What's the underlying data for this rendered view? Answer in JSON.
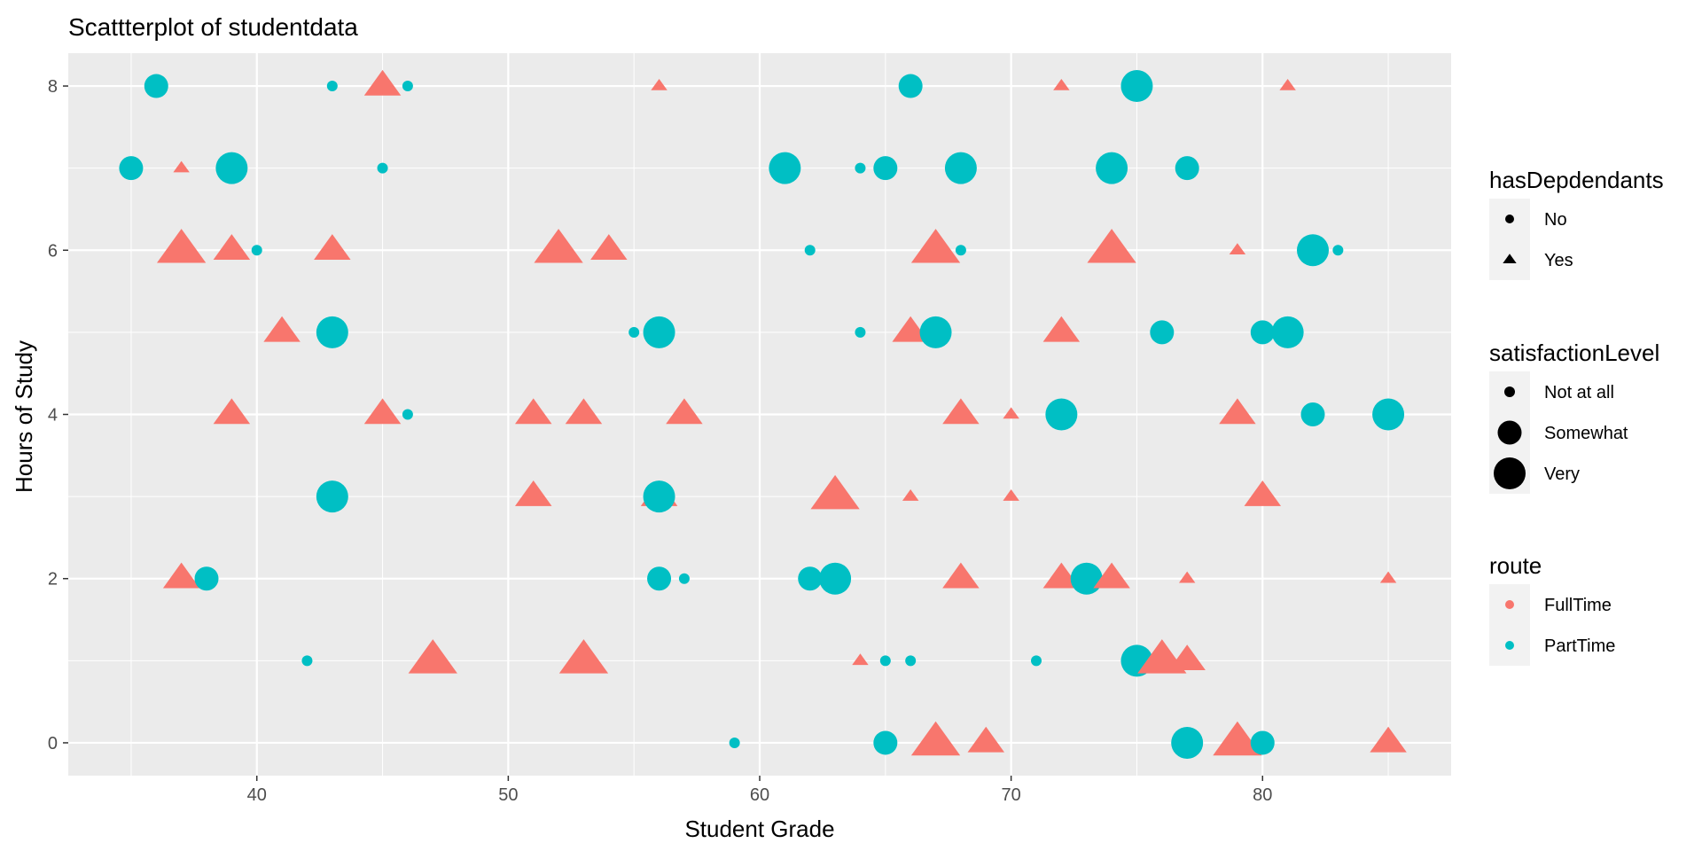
{
  "chart_data": {
    "type": "scatter",
    "title": "Scattterplot of studentdata",
    "xlabel": "Student Grade",
    "ylabel": "Hours of Study",
    "xlim": [
      32.5,
      87.5
    ],
    "ylim": [
      -0.4,
      8.4
    ],
    "xticks": [
      40,
      50,
      60,
      70,
      80
    ],
    "yticks": [
      0,
      2,
      4,
      6,
      8
    ],
    "grid": true,
    "legend_position": "right",
    "colors": {
      "FullTime": "#F8766D",
      "PartTime": "#00BFC4",
      "panel": "#EBEBEB",
      "grid": "#FFFFFF"
    },
    "legends": [
      {
        "title": "hasDepdendants",
        "entries": [
          {
            "label": "No",
            "shape": "circle"
          },
          {
            "label": "Yes",
            "shape": "triangle"
          }
        ]
      },
      {
        "title": "satisfactionLevel",
        "entries": [
          {
            "label": "Not at all",
            "size": "Not at all"
          },
          {
            "label": "Somewhat",
            "size": "Somewhat"
          },
          {
            "label": "Very",
            "size": "Very"
          }
        ]
      },
      {
        "title": "route",
        "entries": [
          {
            "label": "FullTime",
            "color": "#F8766D"
          },
          {
            "label": "PartTime",
            "color": "#00BFC4"
          }
        ]
      }
    ],
    "points": [
      {
        "x": 36,
        "y": 8,
        "route": "PartTime",
        "hasDepdendants": "No",
        "satisfactionLevel": "Somewhat"
      },
      {
        "x": 43,
        "y": 8,
        "route": "PartTime",
        "hasDepdendants": "No",
        "satisfactionLevel": "Not at all"
      },
      {
        "x": 45,
        "y": 8,
        "route": "FullTime",
        "hasDepdendants": "Yes",
        "satisfactionLevel": "Somewhat"
      },
      {
        "x": 46,
        "y": 8,
        "route": "PartTime",
        "hasDepdendants": "No",
        "satisfactionLevel": "Not at all"
      },
      {
        "x": 56,
        "y": 8,
        "route": "FullTime",
        "hasDepdendants": "Yes",
        "satisfactionLevel": "Not at all"
      },
      {
        "x": 66,
        "y": 8,
        "route": "PartTime",
        "hasDepdendants": "No",
        "satisfactionLevel": "Somewhat"
      },
      {
        "x": 72,
        "y": 8,
        "route": "FullTime",
        "hasDepdendants": "Yes",
        "satisfactionLevel": "Not at all"
      },
      {
        "x": 75,
        "y": 8,
        "route": "PartTime",
        "hasDepdendants": "No",
        "satisfactionLevel": "Very"
      },
      {
        "x": 81,
        "y": 8,
        "route": "FullTime",
        "hasDepdendants": "Yes",
        "satisfactionLevel": "Not at all"
      },
      {
        "x": 35,
        "y": 7,
        "route": "PartTime",
        "hasDepdendants": "No",
        "satisfactionLevel": "Somewhat"
      },
      {
        "x": 37,
        "y": 7,
        "route": "FullTime",
        "hasDepdendants": "Yes",
        "satisfactionLevel": "Not at all"
      },
      {
        "x": 39,
        "y": 7,
        "route": "PartTime",
        "hasDepdendants": "No",
        "satisfactionLevel": "Very"
      },
      {
        "x": 45,
        "y": 7,
        "route": "PartTime",
        "hasDepdendants": "No",
        "satisfactionLevel": "Not at all"
      },
      {
        "x": 61,
        "y": 7,
        "route": "PartTime",
        "hasDepdendants": "No",
        "satisfactionLevel": "Very"
      },
      {
        "x": 64,
        "y": 7,
        "route": "PartTime",
        "hasDepdendants": "No",
        "satisfactionLevel": "Not at all"
      },
      {
        "x": 65,
        "y": 7,
        "route": "PartTime",
        "hasDepdendants": "No",
        "satisfactionLevel": "Somewhat"
      },
      {
        "x": 68,
        "y": 7,
        "route": "PartTime",
        "hasDepdendants": "No",
        "satisfactionLevel": "Very"
      },
      {
        "x": 74,
        "y": 7,
        "route": "PartTime",
        "hasDepdendants": "No",
        "satisfactionLevel": "Very"
      },
      {
        "x": 77,
        "y": 7,
        "route": "PartTime",
        "hasDepdendants": "No",
        "satisfactionLevel": "Somewhat"
      },
      {
        "x": 37,
        "y": 6,
        "route": "FullTime",
        "hasDepdendants": "Yes",
        "satisfactionLevel": "Very"
      },
      {
        "x": 39,
        "y": 6,
        "route": "FullTime",
        "hasDepdendants": "Yes",
        "satisfactionLevel": "Somewhat"
      },
      {
        "x": 40,
        "y": 6,
        "route": "PartTime",
        "hasDepdendants": "No",
        "satisfactionLevel": "Not at all"
      },
      {
        "x": 43,
        "y": 6,
        "route": "FullTime",
        "hasDepdendants": "Yes",
        "satisfactionLevel": "Somewhat"
      },
      {
        "x": 52,
        "y": 6,
        "route": "FullTime",
        "hasDepdendants": "Yes",
        "satisfactionLevel": "Very"
      },
      {
        "x": 54,
        "y": 6,
        "route": "FullTime",
        "hasDepdendants": "Yes",
        "satisfactionLevel": "Somewhat"
      },
      {
        "x": 62,
        "y": 6,
        "route": "PartTime",
        "hasDepdendants": "No",
        "satisfactionLevel": "Not at all"
      },
      {
        "x": 67,
        "y": 6,
        "route": "FullTime",
        "hasDepdendants": "Yes",
        "satisfactionLevel": "Very"
      },
      {
        "x": 68,
        "y": 6,
        "route": "PartTime",
        "hasDepdendants": "No",
        "satisfactionLevel": "Not at all"
      },
      {
        "x": 74,
        "y": 6,
        "route": "FullTime",
        "hasDepdendants": "Yes",
        "satisfactionLevel": "Very"
      },
      {
        "x": 79,
        "y": 6,
        "route": "FullTime",
        "hasDepdendants": "Yes",
        "satisfactionLevel": "Not at all"
      },
      {
        "x": 82,
        "y": 6,
        "route": "PartTime",
        "hasDepdendants": "No",
        "satisfactionLevel": "Very"
      },
      {
        "x": 83,
        "y": 6,
        "route": "PartTime",
        "hasDepdendants": "No",
        "satisfactionLevel": "Not at all"
      },
      {
        "x": 41,
        "y": 5,
        "route": "FullTime",
        "hasDepdendants": "Yes",
        "satisfactionLevel": "Somewhat"
      },
      {
        "x": 43,
        "y": 5,
        "route": "PartTime",
        "hasDepdendants": "No",
        "satisfactionLevel": "Very"
      },
      {
        "x": 55,
        "y": 5,
        "route": "PartTime",
        "hasDepdendants": "No",
        "satisfactionLevel": "Not at all"
      },
      {
        "x": 56,
        "y": 5,
        "route": "PartTime",
        "hasDepdendants": "No",
        "satisfactionLevel": "Very"
      },
      {
        "x": 64,
        "y": 5,
        "route": "PartTime",
        "hasDepdendants": "No",
        "satisfactionLevel": "Not at all"
      },
      {
        "x": 66,
        "y": 5,
        "route": "FullTime",
        "hasDepdendants": "Yes",
        "satisfactionLevel": "Somewhat"
      },
      {
        "x": 67,
        "y": 5,
        "route": "PartTime",
        "hasDepdendants": "No",
        "satisfactionLevel": "Very"
      },
      {
        "x": 72,
        "y": 5,
        "route": "FullTime",
        "hasDepdendants": "Yes",
        "satisfactionLevel": "Somewhat"
      },
      {
        "x": 76,
        "y": 5,
        "route": "PartTime",
        "hasDepdendants": "No",
        "satisfactionLevel": "Somewhat"
      },
      {
        "x": 80,
        "y": 5,
        "route": "PartTime",
        "hasDepdendants": "No",
        "satisfactionLevel": "Somewhat"
      },
      {
        "x": 81,
        "y": 5,
        "route": "PartTime",
        "hasDepdendants": "No",
        "satisfactionLevel": "Very"
      },
      {
        "x": 39,
        "y": 4,
        "route": "FullTime",
        "hasDepdendants": "Yes",
        "satisfactionLevel": "Somewhat"
      },
      {
        "x": 45,
        "y": 4,
        "route": "FullTime",
        "hasDepdendants": "Yes",
        "satisfactionLevel": "Somewhat"
      },
      {
        "x": 46,
        "y": 4,
        "route": "PartTime",
        "hasDepdendants": "No",
        "satisfactionLevel": "Not at all"
      },
      {
        "x": 51,
        "y": 4,
        "route": "FullTime",
        "hasDepdendants": "Yes",
        "satisfactionLevel": "Somewhat"
      },
      {
        "x": 53,
        "y": 4,
        "route": "FullTime",
        "hasDepdendants": "Yes",
        "satisfactionLevel": "Somewhat"
      },
      {
        "x": 57,
        "y": 4,
        "route": "FullTime",
        "hasDepdendants": "Yes",
        "satisfactionLevel": "Somewhat"
      },
      {
        "x": 68,
        "y": 4,
        "route": "FullTime",
        "hasDepdendants": "Yes",
        "satisfactionLevel": "Somewhat"
      },
      {
        "x": 70,
        "y": 4,
        "route": "FullTime",
        "hasDepdendants": "Yes",
        "satisfactionLevel": "Not at all"
      },
      {
        "x": 72,
        "y": 4,
        "route": "PartTime",
        "hasDepdendants": "No",
        "satisfactionLevel": "Very"
      },
      {
        "x": 79,
        "y": 4,
        "route": "FullTime",
        "hasDepdendants": "Yes",
        "satisfactionLevel": "Somewhat"
      },
      {
        "x": 82,
        "y": 4,
        "route": "PartTime",
        "hasDepdendants": "No",
        "satisfactionLevel": "Somewhat"
      },
      {
        "x": 85,
        "y": 4,
        "route": "PartTime",
        "hasDepdendants": "No",
        "satisfactionLevel": "Very"
      },
      {
        "x": 43,
        "y": 3,
        "route": "PartTime",
        "hasDepdendants": "No",
        "satisfactionLevel": "Very"
      },
      {
        "x": 51,
        "y": 3,
        "route": "FullTime",
        "hasDepdendants": "Yes",
        "satisfactionLevel": "Somewhat"
      },
      {
        "x": 56,
        "y": 3,
        "route": "FullTime",
        "hasDepdendants": "Yes",
        "satisfactionLevel": "Somewhat"
      },
      {
        "x": 56,
        "y": 3,
        "route": "PartTime",
        "hasDepdendants": "No",
        "satisfactionLevel": "Very"
      },
      {
        "x": 63,
        "y": 3,
        "route": "FullTime",
        "hasDepdendants": "Yes",
        "satisfactionLevel": "Very"
      },
      {
        "x": 66,
        "y": 3,
        "route": "FullTime",
        "hasDepdendants": "Yes",
        "satisfactionLevel": "Not at all"
      },
      {
        "x": 70,
        "y": 3,
        "route": "FullTime",
        "hasDepdendants": "Yes",
        "satisfactionLevel": "Not at all"
      },
      {
        "x": 80,
        "y": 3,
        "route": "FullTime",
        "hasDepdendants": "Yes",
        "satisfactionLevel": "Somewhat"
      },
      {
        "x": 37,
        "y": 2,
        "route": "FullTime",
        "hasDepdendants": "Yes",
        "satisfactionLevel": "Somewhat"
      },
      {
        "x": 38,
        "y": 2,
        "route": "PartTime",
        "hasDepdendants": "No",
        "satisfactionLevel": "Somewhat"
      },
      {
        "x": 56,
        "y": 2,
        "route": "PartTime",
        "hasDepdendants": "No",
        "satisfactionLevel": "Somewhat"
      },
      {
        "x": 57,
        "y": 2,
        "route": "PartTime",
        "hasDepdendants": "No",
        "satisfactionLevel": "Not at all"
      },
      {
        "x": 62,
        "y": 2,
        "route": "PartTime",
        "hasDepdendants": "No",
        "satisfactionLevel": "Somewhat"
      },
      {
        "x": 63,
        "y": 2,
        "route": "PartTime",
        "hasDepdendants": "No",
        "satisfactionLevel": "Very"
      },
      {
        "x": 68,
        "y": 2,
        "route": "FullTime",
        "hasDepdendants": "Yes",
        "satisfactionLevel": "Somewhat"
      },
      {
        "x": 72,
        "y": 2,
        "route": "FullTime",
        "hasDepdendants": "Yes",
        "satisfactionLevel": "Somewhat"
      },
      {
        "x": 73,
        "y": 2,
        "route": "PartTime",
        "hasDepdendants": "No",
        "satisfactionLevel": "Very"
      },
      {
        "x": 74,
        "y": 2,
        "route": "FullTime",
        "hasDepdendants": "Yes",
        "satisfactionLevel": "Somewhat"
      },
      {
        "x": 77,
        "y": 2,
        "route": "FullTime",
        "hasDepdendants": "Yes",
        "satisfactionLevel": "Not at all"
      },
      {
        "x": 85,
        "y": 2,
        "route": "FullTime",
        "hasDepdendants": "Yes",
        "satisfactionLevel": "Not at all"
      },
      {
        "x": 42,
        "y": 1,
        "route": "PartTime",
        "hasDepdendants": "No",
        "satisfactionLevel": "Not at all"
      },
      {
        "x": 47,
        "y": 1,
        "route": "FullTime",
        "hasDepdendants": "Yes",
        "satisfactionLevel": "Very"
      },
      {
        "x": 53,
        "y": 1,
        "route": "FullTime",
        "hasDepdendants": "Yes",
        "satisfactionLevel": "Very"
      },
      {
        "x": 64,
        "y": 1,
        "route": "FullTime",
        "hasDepdendants": "Yes",
        "satisfactionLevel": "Not at all"
      },
      {
        "x": 65,
        "y": 1,
        "route": "PartTime",
        "hasDepdendants": "No",
        "satisfactionLevel": "Not at all"
      },
      {
        "x": 66,
        "y": 1,
        "route": "PartTime",
        "hasDepdendants": "No",
        "satisfactionLevel": "Not at all"
      },
      {
        "x": 71,
        "y": 1,
        "route": "PartTime",
        "hasDepdendants": "No",
        "satisfactionLevel": "Not at all"
      },
      {
        "x": 75,
        "y": 1,
        "route": "PartTime",
        "hasDepdendants": "No",
        "satisfactionLevel": "Very"
      },
      {
        "x": 76,
        "y": 1,
        "route": "FullTime",
        "hasDepdendants": "Yes",
        "satisfactionLevel": "Very"
      },
      {
        "x": 77,
        "y": 1,
        "route": "FullTime",
        "hasDepdendants": "Yes",
        "satisfactionLevel": "Somewhat"
      },
      {
        "x": 59,
        "y": 0,
        "route": "PartTime",
        "hasDepdendants": "No",
        "satisfactionLevel": "Not at all"
      },
      {
        "x": 65,
        "y": 0,
        "route": "PartTime",
        "hasDepdendants": "No",
        "satisfactionLevel": "Somewhat"
      },
      {
        "x": 67,
        "y": 0,
        "route": "FullTime",
        "hasDepdendants": "Yes",
        "satisfactionLevel": "Very"
      },
      {
        "x": 69,
        "y": 0,
        "route": "FullTime",
        "hasDepdendants": "Yes",
        "satisfactionLevel": "Somewhat"
      },
      {
        "x": 77,
        "y": 0,
        "route": "PartTime",
        "hasDepdendants": "No",
        "satisfactionLevel": "Very"
      },
      {
        "x": 79,
        "y": 0,
        "route": "FullTime",
        "hasDepdendants": "Yes",
        "satisfactionLevel": "Very"
      },
      {
        "x": 80,
        "y": 0,
        "route": "PartTime",
        "hasDepdendants": "No",
        "satisfactionLevel": "Somewhat"
      },
      {
        "x": 85,
        "y": 0,
        "route": "FullTime",
        "hasDepdendants": "Yes",
        "satisfactionLevel": "Somewhat"
      }
    ]
  }
}
